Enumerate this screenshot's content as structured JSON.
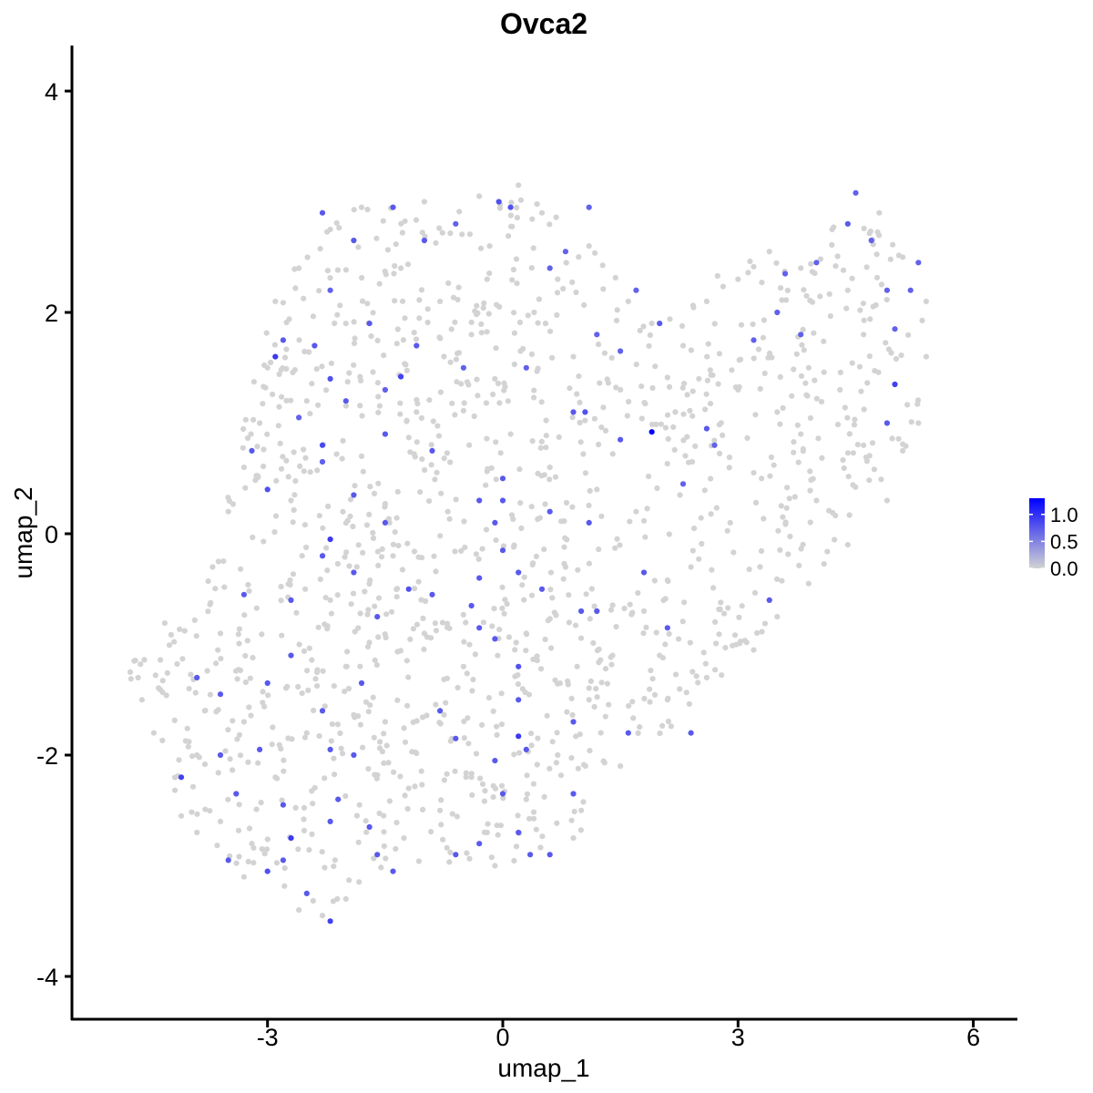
{
  "chart_data": {
    "type": "scatter",
    "title": "Ovca2",
    "xlabel": "umap_1",
    "ylabel": "umap_2",
    "xlim": [
      -5.8,
      6.6
    ],
    "ylim": [
      -4.4,
      4.4
    ],
    "x_ticks": [
      -3,
      0,
      3,
      6
    ],
    "y_ticks": [
      -4,
      -2,
      0,
      2,
      4
    ],
    "x_tick_labels": [
      "-3",
      "0",
      "3",
      "6"
    ],
    "y_tick_labels": [
      "-4",
      "-2",
      "0",
      "2",
      "4"
    ],
    "grid": false,
    "color_scale": {
      "low_color": "#d3d3d3",
      "high_color": "#0000ff",
      "min": 0.0,
      "max": 1.3,
      "legend_ticks": [
        0.0,
        0.5,
        1.0
      ],
      "legend_tick_labels": [
        "0.0",
        "0.5",
        "1.0"
      ],
      "legend_position": "right"
    },
    "expressing_points": [
      {
        "x": 1.9,
        "y": 0.92,
        "value": 1.3
      },
      {
        "x": -2.9,
        "y": 1.6,
        "value": 0.95
      },
      {
        "x": -1.3,
        "y": 1.42,
        "value": 0.9
      },
      {
        "x": 0.2,
        "y": -1.83,
        "value": 0.95
      },
      {
        "x": -2.2,
        "y": -0.05,
        "value": 0.95
      },
      {
        "x": -2.7,
        "y": -2.75,
        "value": 0.95
      },
      {
        "x": -2.2,
        "y": -3.5,
        "value": 0.9
      },
      {
        "x": -4.1,
        "y": -2.2,
        "value": 0.9
      },
      {
        "x": 5.0,
        "y": 1.35,
        "value": 0.9
      },
      {
        "x": -2.3,
        "y": 0.8,
        "value": 0.85
      },
      {
        "x": -0.05,
        "y": 3.0,
        "value": 0.8
      },
      {
        "x": 0.1,
        "y": 2.95,
        "value": 0.8
      },
      {
        "x": -2.3,
        "y": 2.9,
        "value": 0.75
      },
      {
        "x": -1.4,
        "y": 2.95,
        "value": 0.75
      },
      {
        "x": -1.9,
        "y": 2.65,
        "value": 0.75
      },
      {
        "x": -1.0,
        "y": 2.65,
        "value": 0.75
      },
      {
        "x": -0.6,
        "y": 2.8,
        "value": 0.7
      },
      {
        "x": 0.8,
        "y": 2.55,
        "value": 0.7
      },
      {
        "x": 1.1,
        "y": 2.95,
        "value": 0.7
      },
      {
        "x": -2.2,
        "y": 2.2,
        "value": 0.7
      },
      {
        "x": -1.7,
        "y": 1.9,
        "value": 0.75
      },
      {
        "x": -2.8,
        "y": 1.75,
        "value": 0.75
      },
      {
        "x": -2.4,
        "y": 1.7,
        "value": 0.75
      },
      {
        "x": -2.2,
        "y": 1.4,
        "value": 0.8
      },
      {
        "x": -1.5,
        "y": 1.3,
        "value": 0.7
      },
      {
        "x": -1.1,
        "y": 1.7,
        "value": 0.75
      },
      {
        "x": 0.6,
        "y": 2.4,
        "value": 0.7
      },
      {
        "x": 1.2,
        "y": 1.8,
        "value": 0.7
      },
      {
        "x": 0.3,
        "y": 1.5,
        "value": 0.7
      },
      {
        "x": -0.5,
        "y": 1.5,
        "value": 0.7
      },
      {
        "x": 1.7,
        "y": 2.2,
        "value": 0.7
      },
      {
        "x": 2.0,
        "y": 1.9,
        "value": 0.75
      },
      {
        "x": 1.5,
        "y": 1.65,
        "value": 0.7
      },
      {
        "x": 0.9,
        "y": 1.1,
        "value": 0.75
      },
      {
        "x": 1.05,
        "y": 1.1,
        "value": 0.8
      },
      {
        "x": 1.5,
        "y": 0.85,
        "value": 0.75
      },
      {
        "x": 2.6,
        "y": 0.95,
        "value": 0.75
      },
      {
        "x": 2.7,
        "y": 0.8,
        "value": 0.7
      },
      {
        "x": 2.3,
        "y": 0.45,
        "value": 0.7
      },
      {
        "x": 3.2,
        "y": 1.75,
        "value": 0.7
      },
      {
        "x": 3.5,
        "y": 2.0,
        "value": 0.7
      },
      {
        "x": 3.6,
        "y": 2.35,
        "value": 0.7
      },
      {
        "x": 4.0,
        "y": 2.45,
        "value": 0.7
      },
      {
        "x": 4.4,
        "y": 2.8,
        "value": 0.75
      },
      {
        "x": 4.5,
        "y": 3.08,
        "value": 0.7
      },
      {
        "x": 4.7,
        "y": 2.65,
        "value": 0.7
      },
      {
        "x": 4.9,
        "y": 2.2,
        "value": 0.7
      },
      {
        "x": 5.0,
        "y": 1.85,
        "value": 0.7
      },
      {
        "x": 5.2,
        "y": 2.2,
        "value": 0.7
      },
      {
        "x": 5.3,
        "y": 2.45,
        "value": 0.7
      },
      {
        "x": 4.9,
        "y": 1.0,
        "value": 0.75
      },
      {
        "x": 3.8,
        "y": 1.8,
        "value": 0.7
      },
      {
        "x": -3.0,
        "y": 0.4,
        "value": 0.8
      },
      {
        "x": -3.2,
        "y": 0.75,
        "value": 0.75
      },
      {
        "x": -2.6,
        "y": 1.05,
        "value": 0.7
      },
      {
        "x": -2.3,
        "y": 0.65,
        "value": 0.7
      },
      {
        "x": -2.3,
        "y": -0.2,
        "value": 0.75
      },
      {
        "x": -1.9,
        "y": -0.35,
        "value": 0.75
      },
      {
        "x": -1.9,
        "y": 0.35,
        "value": 0.75
      },
      {
        "x": -2.7,
        "y": -0.6,
        "value": 0.75
      },
      {
        "x": -3.3,
        "y": -0.55,
        "value": 0.75
      },
      {
        "x": -1.5,
        "y": 0.1,
        "value": 0.75
      },
      {
        "x": -1.2,
        "y": -0.5,
        "value": 0.8
      },
      {
        "x": -0.9,
        "y": -0.55,
        "value": 0.75
      },
      {
        "x": -0.9,
        "y": 0.75,
        "value": 0.75
      },
      {
        "x": -0.3,
        "y": 0.3,
        "value": 0.75
      },
      {
        "x": 0.0,
        "y": 0.3,
        "value": 0.75
      },
      {
        "x": -0.1,
        "y": 0.1,
        "value": 0.75
      },
      {
        "x": 0.0,
        "y": -0.15,
        "value": 0.75
      },
      {
        "x": 0.2,
        "y": -0.35,
        "value": 0.75
      },
      {
        "x": -0.4,
        "y": -0.65,
        "value": 0.75
      },
      {
        "x": -0.3,
        "y": -0.85,
        "value": 0.75
      },
      {
        "x": 0.2,
        "y": -1.2,
        "value": 0.8
      },
      {
        "x": -0.1,
        "y": -0.95,
        "value": 0.75
      },
      {
        "x": 1.0,
        "y": -0.7,
        "value": 0.75
      },
      {
        "x": 1.2,
        "y": -0.7,
        "value": 0.75
      },
      {
        "x": 1.8,
        "y": -0.35,
        "value": 0.75
      },
      {
        "x": 2.1,
        "y": -0.85,
        "value": 0.75
      },
      {
        "x": 3.4,
        "y": -0.6,
        "value": 0.75
      },
      {
        "x": -3.9,
        "y": -1.3,
        "value": 0.75
      },
      {
        "x": -3.6,
        "y": -1.45,
        "value": 0.75
      },
      {
        "x": -3.0,
        "y": -1.35,
        "value": 0.75
      },
      {
        "x": -2.7,
        "y": -1.1,
        "value": 0.75
      },
      {
        "x": -2.3,
        "y": -1.6,
        "value": 0.75
      },
      {
        "x": -1.8,
        "y": -1.35,
        "value": 0.75
      },
      {
        "x": -1.9,
        "y": -2.0,
        "value": 0.75
      },
      {
        "x": -2.2,
        "y": -1.95,
        "value": 0.75
      },
      {
        "x": -2.1,
        "y": -2.4,
        "value": 0.75
      },
      {
        "x": -2.8,
        "y": -2.45,
        "value": 0.75
      },
      {
        "x": -3.1,
        "y": -1.95,
        "value": 0.75
      },
      {
        "x": -3.6,
        "y": -2.0,
        "value": 0.75
      },
      {
        "x": -3.4,
        "y": -2.35,
        "value": 0.75
      },
      {
        "x": -3.5,
        "y": -2.95,
        "value": 0.75
      },
      {
        "x": -3.0,
        "y": -3.05,
        "value": 0.8
      },
      {
        "x": -2.8,
        "y": -2.95,
        "value": 0.75
      },
      {
        "x": -2.5,
        "y": -3.25,
        "value": 0.75
      },
      {
        "x": -2.2,
        "y": -2.6,
        "value": 0.75
      },
      {
        "x": -1.7,
        "y": -2.65,
        "value": 0.75
      },
      {
        "x": -1.6,
        "y": -2.9,
        "value": 0.75
      },
      {
        "x": -1.4,
        "y": -3.05,
        "value": 0.75
      },
      {
        "x": -0.6,
        "y": -2.9,
        "value": 0.75
      },
      {
        "x": -0.3,
        "y": -2.8,
        "value": 0.75
      },
      {
        "x": 0.0,
        "y": -2.35,
        "value": 0.75
      },
      {
        "x": 0.2,
        "y": -2.7,
        "value": 0.75
      },
      {
        "x": 0.35,
        "y": -2.9,
        "value": 0.75
      },
      {
        "x": 0.6,
        "y": -2.9,
        "value": 0.75
      },
      {
        "x": 0.9,
        "y": -2.35,
        "value": 0.75
      },
      {
        "x": 0.3,
        "y": -1.95,
        "value": 0.75
      },
      {
        "x": -0.1,
        "y": -2.05,
        "value": 0.75
      },
      {
        "x": -0.6,
        "y": -1.85,
        "value": 0.75
      },
      {
        "x": -0.8,
        "y": -1.6,
        "value": 0.75
      },
      {
        "x": 0.2,
        "y": -1.5,
        "value": 0.75
      },
      {
        "x": 0.9,
        "y": -1.7,
        "value": 0.75
      },
      {
        "x": 1.6,
        "y": -1.8,
        "value": 0.75
      },
      {
        "x": 2.4,
        "y": -1.8,
        "value": 0.75
      },
      {
        "x": 1.1,
        "y": 0.1,
        "value": 0.75
      },
      {
        "x": 0.6,
        "y": 0.2,
        "value": 0.75
      },
      {
        "x": 0.0,
        "y": 0.5,
        "value": 0.75
      },
      {
        "x": -1.5,
        "y": 0.9,
        "value": 0.75
      },
      {
        "x": -2.0,
        "y": 1.2,
        "value": 0.75
      },
      {
        "x": -0.3,
        "y": -0.4,
        "value": 0.75
      },
      {
        "x": -1.6,
        "y": -0.75,
        "value": 0.75
      },
      {
        "x": 0.5,
        "y": -0.5,
        "value": 0.75
      }
    ],
    "background_points": [
      {
        "x": -4.75,
        "y": -1.25,
        "value": 0.0
      },
      {
        "x": -4.7,
        "y": -1.15,
        "value": 0.0
      },
      {
        "x": -4.65,
        "y": -1.3,
        "value": 0.0
      },
      {
        "x": -4.6,
        "y": -1.5,
        "value": 0.0
      },
      {
        "x": -4.45,
        "y": -1.8,
        "value": 0.0
      },
      {
        "x": -4.1,
        "y": -2.55,
        "value": 0.0
      },
      {
        "x": -3.9,
        "y": -2.7,
        "value": 0.0
      },
      {
        "x": -3.3,
        "y": -3.1,
        "value": 0.0
      },
      {
        "x": -2.6,
        "y": -3.4,
        "value": 0.0
      },
      {
        "x": -2.3,
        "y": -3.45,
        "value": 0.0
      },
      {
        "x": -2.0,
        "y": -3.3,
        "value": 0.0
      },
      {
        "x": -0.1,
        "y": -3.0,
        "value": 0.0
      },
      {
        "x": 0.9,
        "y": -2.75,
        "value": 0.0
      },
      {
        "x": 1.0,
        "y": -2.5,
        "value": 0.0
      },
      {
        "x": 1.5,
        "y": -2.1,
        "value": 0.0
      },
      {
        "x": 2.1,
        "y": -1.5,
        "value": 0.0
      },
      {
        "x": 2.6,
        "y": -1.3,
        "value": 0.0
      },
      {
        "x": 3.2,
        "y": -1.05,
        "value": 0.0
      },
      {
        "x": 3.5,
        "y": -0.75,
        "value": 0.0
      },
      {
        "x": 3.9,
        "y": -0.45,
        "value": 0.0
      },
      {
        "x": 4.4,
        "y": -0.1,
        "value": 0.0
      },
      {
        "x": 4.9,
        "y": 0.3,
        "value": 0.0
      },
      {
        "x": 5.1,
        "y": 0.75,
        "value": 0.0
      },
      {
        "x": 5.3,
        "y": 1.0,
        "value": 0.0
      },
      {
        "x": 5.4,
        "y": 1.6,
        "value": 0.0
      },
      {
        "x": 5.4,
        "y": 2.1,
        "value": 0.0
      },
      {
        "x": 5.1,
        "y": 2.5,
        "value": 0.0
      },
      {
        "x": 4.8,
        "y": 2.9,
        "value": 0.0
      },
      {
        "x": 4.2,
        "y": 2.75,
        "value": 0.0
      },
      {
        "x": 3.8,
        "y": 2.4,
        "value": 0.0
      },
      {
        "x": 3.4,
        "y": 2.55,
        "value": 0.0
      },
      {
        "x": 3.0,
        "y": 2.3,
        "value": 0.0
      },
      {
        "x": 2.6,
        "y": 2.1,
        "value": 0.0
      },
      {
        "x": 2.3,
        "y": 1.7,
        "value": 0.0
      },
      {
        "x": 1.9,
        "y": 1.9,
        "value": 0.0
      },
      {
        "x": 1.6,
        "y": 2.1,
        "value": 0.0
      },
      {
        "x": 1.1,
        "y": 2.6,
        "value": 0.0
      },
      {
        "x": 0.5,
        "y": 2.9,
        "value": 0.0
      },
      {
        "x": 0.2,
        "y": 3.15,
        "value": 0.0
      },
      {
        "x": -0.3,
        "y": 3.05,
        "value": 0.0
      },
      {
        "x": -1.0,
        "y": 3.0,
        "value": 0.0
      },
      {
        "x": -1.8,
        "y": 2.95,
        "value": 0.0
      },
      {
        "x": -2.2,
        "y": 2.75,
        "value": 0.0
      },
      {
        "x": -2.6,
        "y": 2.4,
        "value": 0.0
      },
      {
        "x": -2.9,
        "y": 2.1,
        "value": 0.0
      },
      {
        "x": -3.0,
        "y": 1.5,
        "value": 0.0
      },
      {
        "x": -3.1,
        "y": 1.0,
        "value": 0.0
      },
      {
        "x": -3.3,
        "y": 0.6,
        "value": 0.0
      },
      {
        "x": -3.5,
        "y": 0.2,
        "value": 0.0
      },
      {
        "x": -3.7,
        "y": -0.3,
        "value": 0.0
      },
      {
        "x": -3.6,
        "y": -0.9,
        "value": 0.0
      },
      {
        "x": -3.8,
        "y": -1.6,
        "value": 0.0
      },
      {
        "x": -3.9,
        "y": -2.0,
        "value": 0.0
      },
      {
        "x": -3.6,
        "y": -2.6,
        "value": 0.0
      },
      {
        "x": -3.2,
        "y": -2.8,
        "value": 0.0
      },
      {
        "x": -2.9,
        "y": -2.2,
        "value": 0.0
      },
      {
        "x": -2.5,
        "y": -1.8,
        "value": 0.0
      },
      {
        "x": -2.0,
        "y": -1.2,
        "value": 0.0
      },
      {
        "x": -1.5,
        "y": -1.7,
        "value": 0.0
      },
      {
        "x": -1.2,
        "y": -2.3,
        "value": 0.0
      },
      {
        "x": -0.8,
        "y": -2.5,
        "value": 0.0
      },
      {
        "x": -0.4,
        "y": -2.2,
        "value": 0.0
      },
      {
        "x": 0.3,
        "y": -2.4,
        "value": 0.0
      },
      {
        "x": 0.7,
        "y": -2.0,
        "value": 0.0
      },
      {
        "x": 1.1,
        "y": -1.5,
        "value": 0.0
      },
      {
        "x": 1.4,
        "y": -1.1,
        "value": 0.0
      },
      {
        "x": 1.8,
        "y": -0.7,
        "value": 0.0
      },
      {
        "x": 2.4,
        "y": -0.3,
        "value": 0.0
      },
      {
        "x": 2.9,
        "y": 0.1,
        "value": 0.0
      },
      {
        "x": 3.3,
        "y": 0.5,
        "value": 0.0
      },
      {
        "x": 3.8,
        "y": 0.9,
        "value": 0.0
      },
      {
        "x": 4.3,
        "y": 1.3,
        "value": 0.0
      },
      {
        "x": 4.6,
        "y": 1.8,
        "value": 0.0
      },
      {
        "x": 4.4,
        "y": 2.2,
        "value": 0.0
      },
      {
        "x": 3.9,
        "y": 1.5,
        "value": 0.0
      },
      {
        "x": 3.5,
        "y": 1.1,
        "value": 0.0
      },
      {
        "x": 3.0,
        "y": 1.3,
        "value": 0.0
      },
      {
        "x": 2.5,
        "y": 1.4,
        "value": 0.0
      },
      {
        "x": 2.2,
        "y": 1.1,
        "value": 0.0
      },
      {
        "x": 1.5,
        "y": 1.3,
        "value": 0.0
      },
      {
        "x": 0.9,
        "y": 1.6,
        "value": 0.0
      },
      {
        "x": 0.4,
        "y": 2.0,
        "value": 0.0
      },
      {
        "x": -0.2,
        "y": 2.3,
        "value": 0.0
      },
      {
        "x": -0.8,
        "y": 2.1,
        "value": 0.0
      },
      {
        "x": -1.3,
        "y": 2.4,
        "value": 0.0
      },
      {
        "x": -2.0,
        "y": 1.9,
        "value": 0.0
      },
      {
        "x": -2.5,
        "y": 1.2,
        "value": 0.0
      },
      {
        "x": -2.7,
        "y": 0.3,
        "value": 0.0
      },
      {
        "x": -2.2,
        "y": -0.6,
        "value": 0.0
      },
      {
        "x": -1.4,
        "y": -0.2,
        "value": 0.0
      },
      {
        "x": -0.7,
        "y": 0.2,
        "value": 0.0
      },
      {
        "x": 0.1,
        "y": 0.9,
        "value": 0.0
      },
      {
        "x": 0.6,
        "y": 0.6,
        "value": 0.0
      },
      {
        "x": 1.2,
        "y": 0.4,
        "value": 0.0
      },
      {
        "x": 1.7,
        "y": 0.2,
        "value": 0.0
      },
      {
        "x": 0.8,
        "y": -0.3,
        "value": 0.0
      },
      {
        "x": 0.3,
        "y": -0.9,
        "value": 0.0
      },
      {
        "x": -0.5,
        "y": -1.2,
        "value": 0.0
      },
      {
        "x": -1.0,
        "y": -0.9,
        "value": 0.0
      },
      {
        "x": -1.8,
        "y": 0.7,
        "value": 0.0
      },
      {
        "x": -1.1,
        "y": 1.1,
        "value": 0.0
      },
      {
        "x": -0.4,
        "y": 1.8,
        "value": 0.0
      },
      {
        "x": 0.7,
        "y": 2.3,
        "value": 0.0
      },
      {
        "x": 4.0,
        "y": 0.3,
        "value": 0.0
      },
      {
        "x": 4.6,
        "y": 0.8,
        "value": 0.0
      },
      {
        "x": 2.0,
        "y": -1.1,
        "value": 0.0
      },
      {
        "x": -0.2,
        "y": -2.7,
        "value": 0.0
      },
      {
        "x": -3.3,
        "y": -1.7,
        "value": 0.0
      },
      {
        "x": -4.0,
        "y": -1.4,
        "value": 0.0
      }
    ]
  }
}
